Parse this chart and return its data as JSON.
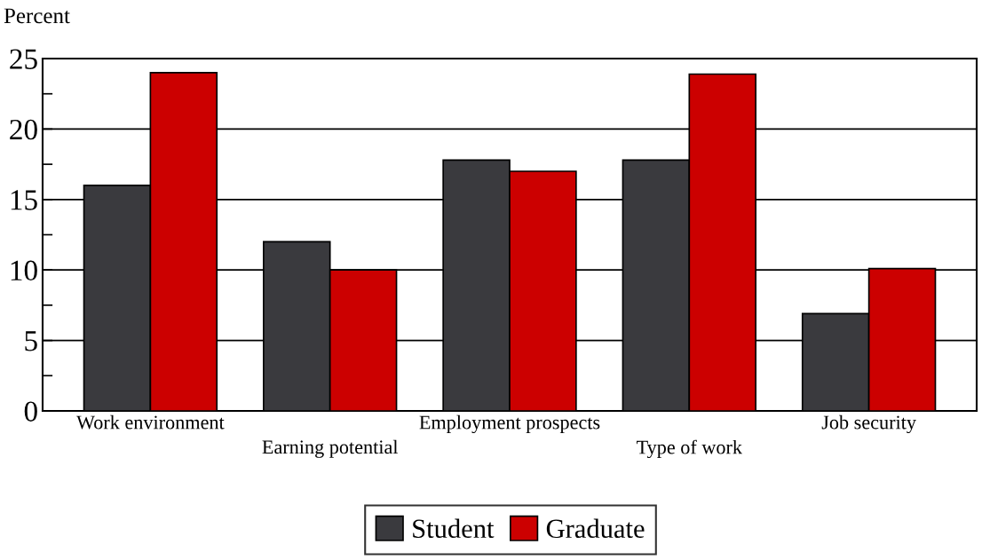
{
  "chart_data": {
    "type": "bar",
    "ylabel": "Percent",
    "categories": [
      "Work environment",
      "Earning potential",
      "Employment prospects",
      "Type of work",
      "Job security"
    ],
    "series": [
      {
        "name": "Student",
        "color": "#3a3a3e",
        "values": [
          16,
          12,
          17.8,
          17.8,
          6.9
        ]
      },
      {
        "name": "Graduate",
        "color": "#cc0000",
        "values": [
          24,
          10,
          17,
          23.9,
          10.1
        ]
      }
    ],
    "ylim": [
      0,
      25
    ],
    "yticks": [
      0,
      {
        "value": 2.5,
        "label": null
      },
      5,
      {
        "value": 7.5,
        "label": null
      },
      10,
      {
        "value": 12.5,
        "label": null
      },
      15,
      {
        "value": 17.5,
        "label": null
      },
      20,
      {
        "value": 22.5,
        "label": null
      },
      25
    ],
    "grid": "y",
    "legend": "bottom"
  }
}
